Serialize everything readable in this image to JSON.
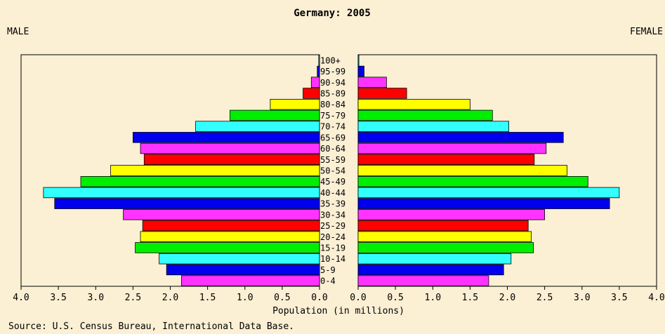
{
  "chart_data": {
    "type": "bar",
    "title": "Germany: 2005",
    "left_label": "MALE",
    "right_label": "FEMALE",
    "xlabel": "Population (in millions)",
    "source": "Source: U.S. Census Bureau, International Data Base.",
    "xlim": [
      0,
      4
    ],
    "x_ticks": [
      "4.0",
      "3.5",
      "3.0",
      "2.5",
      "2.0",
      "1.5",
      "1.0",
      "0.5",
      "0.0",
      "0.0",
      "0.5",
      "1.0",
      "1.5",
      "2.0",
      "2.5",
      "3.0",
      "3.5",
      "4.0"
    ],
    "categories": [
      "0-4",
      "5-9",
      "10-14",
      "15-19",
      "20-24",
      "25-29",
      "30-34",
      "35-39",
      "40-44",
      "45-49",
      "50-54",
      "55-59",
      "60-64",
      "65-69",
      "70-74",
      "75-79",
      "80-84",
      "85-89",
      "90-94",
      "95-99",
      "100+"
    ],
    "colors": [
      "#FF33FF",
      "#0000EE",
      "#33FFFF",
      "#00EE00",
      "#FFFF00",
      "#FF0000",
      "#FF33FF",
      "#0000EE",
      "#33FFFF",
      "#00EE00",
      "#FFFF00",
      "#FF0000",
      "#FF33FF",
      "#0000EE",
      "#33FFFF",
      "#00EE00",
      "#FFFF00",
      "#FF0000",
      "#FF33FF",
      "#0000EE",
      "#33FFFF"
    ],
    "series": [
      {
        "name": "MALE",
        "values": [
          1.85,
          2.05,
          2.15,
          2.47,
          2.4,
          2.37,
          2.63,
          3.55,
          3.7,
          3.2,
          2.8,
          2.35,
          2.4,
          2.5,
          1.66,
          1.2,
          0.66,
          0.22,
          0.11,
          0.03,
          0.01
        ]
      },
      {
        "name": "FEMALE",
        "values": [
          1.75,
          1.95,
          2.05,
          2.35,
          2.32,
          2.28,
          2.5,
          3.37,
          3.5,
          3.08,
          2.8,
          2.36,
          2.52,
          2.75,
          2.02,
          1.8,
          1.5,
          0.65,
          0.38,
          0.08,
          0.01
        ]
      }
    ]
  }
}
